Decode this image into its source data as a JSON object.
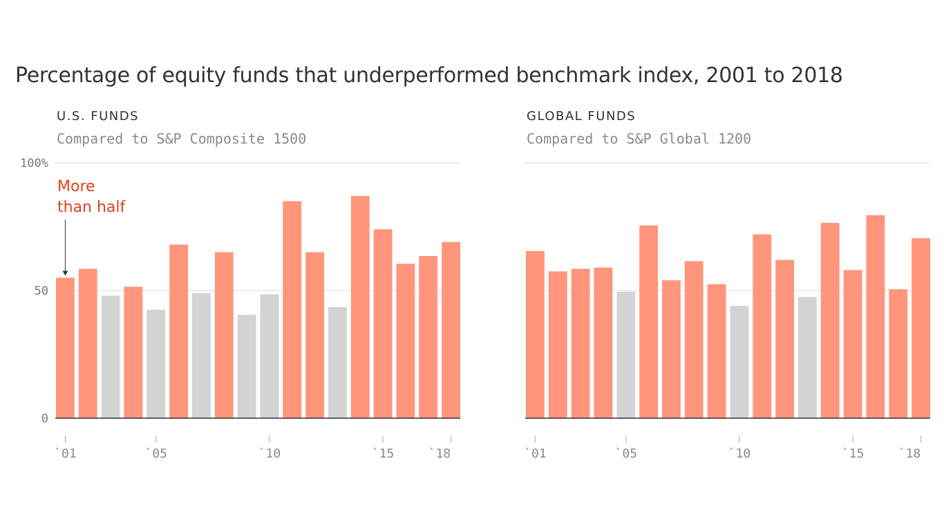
{
  "title": "Percentage of equity funds that underperformed benchmark index, 2001 to 2018",
  "colors": {
    "above_half": "#ff957a",
    "below_half": "#d2d3d2",
    "annotation": "#e0421b",
    "gridline": "#d9d9d9",
    "axis": "#333333"
  },
  "y_tick_labels": [
    "100%",
    "50",
    "0"
  ],
  "annotation": {
    "line1": "More",
    "line2": "than half"
  },
  "chart_data": [
    {
      "type": "bar",
      "title": "U.S. FUNDS",
      "subtitle": "Compared to S&P Composite 1500",
      "categories": [
        "2001",
        "2002",
        "2003",
        "2004",
        "2005",
        "2006",
        "2007",
        "2008",
        "2009",
        "2010",
        "2011",
        "2012",
        "2013",
        "2014",
        "2015",
        "2016",
        "2017",
        "2018"
      ],
      "values": [
        55,
        58.5,
        48,
        51.5,
        42.5,
        68,
        49,
        65,
        40.5,
        48.5,
        85,
        65,
        43.5,
        87,
        74,
        60.5,
        63.5,
        69
      ],
      "threshold": 50,
      "ylim": [
        0,
        100
      ],
      "y_ticks": [
        0,
        50,
        100
      ],
      "x_tick_values": [
        "2001",
        "2005",
        "2010",
        "2015",
        "2018"
      ],
      "x_tick_labels": [
        "`01",
        "`05",
        "`10",
        "`15",
        "`18"
      ],
      "grid": true
    },
    {
      "type": "bar",
      "title": "GLOBAL FUNDS",
      "subtitle": "Compared to S&P Global 1200",
      "categories": [
        "2001",
        "2002",
        "2003",
        "2004",
        "2005",
        "2006",
        "2007",
        "2008",
        "2009",
        "2010",
        "2011",
        "2012",
        "2013",
        "2014",
        "2015",
        "2016",
        "2017",
        "2018"
      ],
      "values": [
        65.5,
        57.5,
        58.5,
        59,
        49.5,
        75.5,
        54,
        61.5,
        52.5,
        44,
        72,
        62,
        47.5,
        76.5,
        58,
        79.5,
        50.5,
        70.5
      ],
      "threshold": 50,
      "ylim": [
        0,
        100
      ],
      "y_ticks": [
        0,
        50,
        100
      ],
      "x_tick_values": [
        "2001",
        "2005",
        "2010",
        "2015",
        "2018"
      ],
      "x_tick_labels": [
        "`01",
        "`05",
        "`10",
        "`15",
        "`18"
      ],
      "grid": true
    }
  ]
}
